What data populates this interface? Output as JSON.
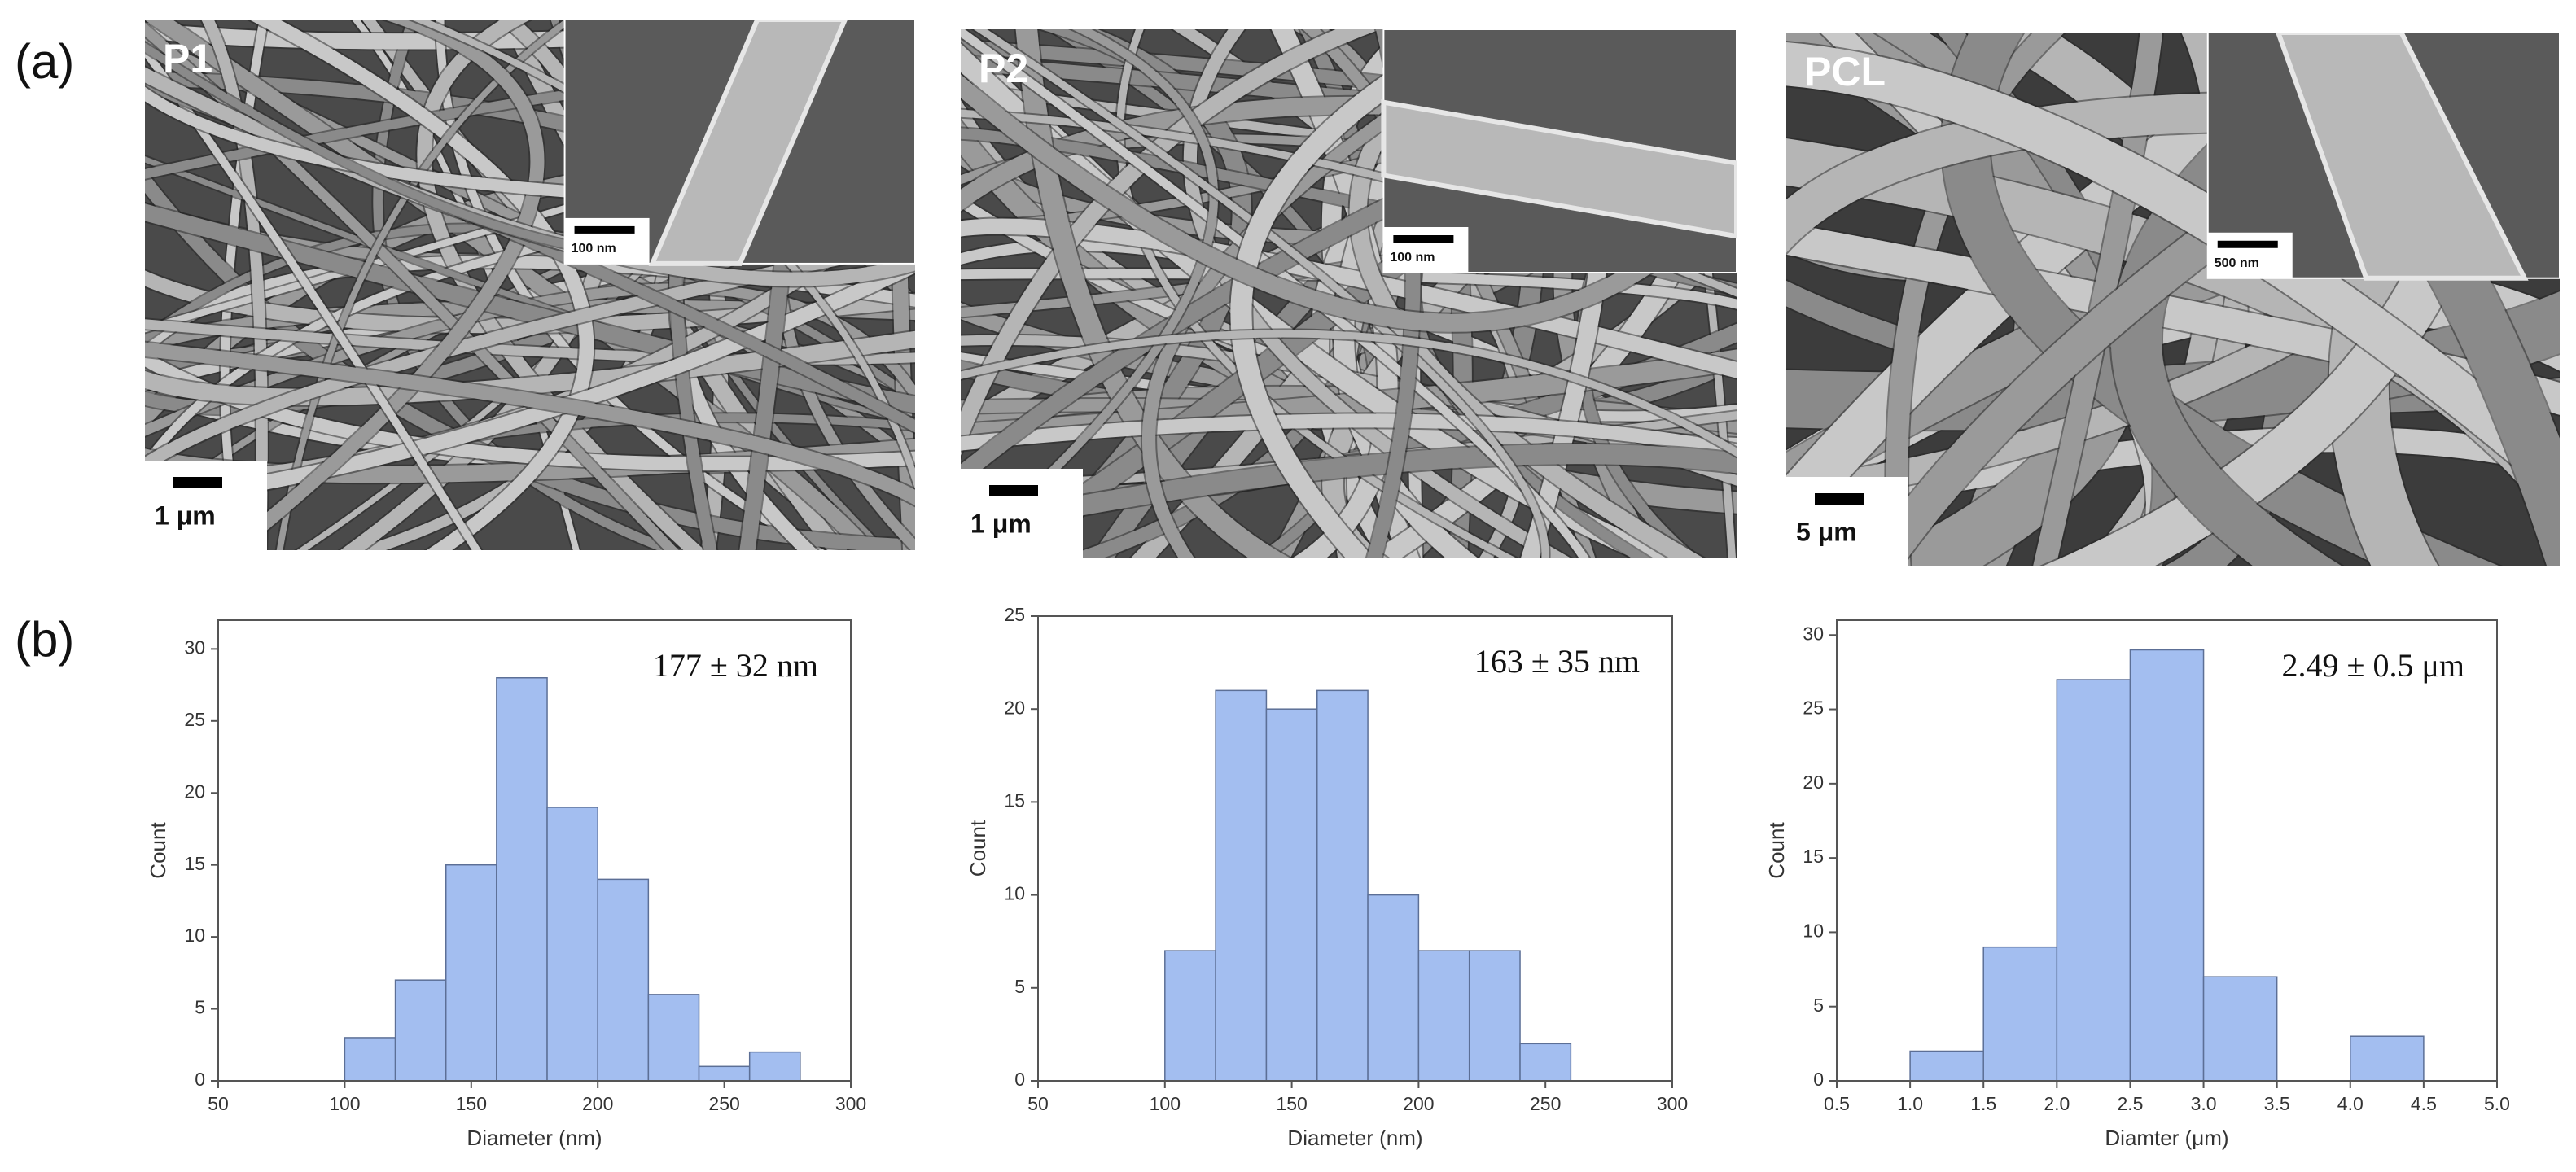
{
  "figure": {
    "panel_labels": [
      "(a)",
      "(b)"
    ],
    "images": [
      {
        "label": "P1",
        "scale_bar": "1 μm",
        "inset_scale_bar": "100 nm"
      },
      {
        "label": "P2",
        "scale_bar": "1 μm",
        "inset_scale_bar": "100 nm"
      },
      {
        "label": "PCL",
        "scale_bar": "5 μm",
        "inset_scale_bar": "500 nm"
      }
    ]
  },
  "chart_data": [
    {
      "type": "histogram",
      "bins": [
        100,
        120,
        140,
        160,
        180,
        200,
        220,
        240,
        260,
        280
      ],
      "values": [
        3,
        7,
        15,
        28,
        19,
        14,
        6,
        1,
        2
      ],
      "color": "#a3bef0",
      "edge_color": "#5c6f96",
      "xlim": [
        50,
        300
      ],
      "xticks": [
        50,
        100,
        150,
        200,
        250,
        300
      ],
      "ylim": [
        0,
        32
      ],
      "yticks": [
        0,
        5,
        10,
        15,
        20,
        25,
        30
      ],
      "xlabel": "Diameter (nm)",
      "ylabel": "Count",
      "annotation": "177 ± 32 nm"
    },
    {
      "type": "histogram",
      "bins": [
        100,
        120,
        140,
        160,
        180,
        200,
        220,
        240,
        260
      ],
      "values": [
        7,
        21,
        20,
        21,
        10,
        7,
        7,
        2
      ],
      "color": "#a3bef0",
      "edge_color": "#5c6f96",
      "xlim": [
        50,
        300
      ],
      "xticks": [
        50,
        100,
        150,
        200,
        250,
        300
      ],
      "ylim": [
        0,
        25
      ],
      "yticks": [
        0,
        5,
        10,
        15,
        20,
        25
      ],
      "xlabel": "Diameter (nm)",
      "ylabel": "Count",
      "annotation": "163 ± 35 nm"
    },
    {
      "type": "histogram",
      "bins": [
        1.0,
        1.5,
        2.0,
        2.5,
        3.0,
        3.5,
        4.0,
        4.5
      ],
      "values": [
        2,
        9,
        27,
        29,
        7,
        0,
        3
      ],
      "color": "#a3bef0",
      "edge_color": "#5c6f96",
      "xlim": [
        0.5,
        5.0
      ],
      "xticks": [
        0.5,
        {
          "value": 1,
          "label": "1.0"
        },
        1.5,
        {
          "value": 2,
          "label": "2.0"
        },
        2.5,
        {
          "value": 3,
          "label": "3.0"
        },
        3.5,
        {
          "value": 4,
          "label": "4.0"
        },
        4.5,
        {
          "value": 5,
          "label": "5.0"
        }
      ],
      "ylim": [
        0,
        31
      ],
      "yticks": [
        0,
        5,
        10,
        15,
        20,
        25,
        30
      ],
      "xlabel": "Diamter (μm)",
      "ylabel": "Count",
      "annotation": "2.49 ± 0.5 μm"
    }
  ]
}
